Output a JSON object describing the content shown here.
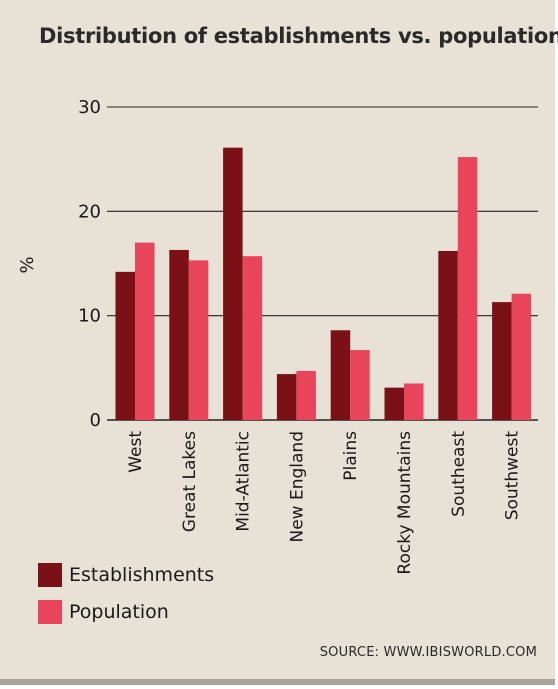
{
  "chart_data": {
    "type": "bar",
    "title": "Distribution of establishments vs. population",
    "ylabel": "%",
    "xlabel": "",
    "ylim": [
      0,
      30
    ],
    "yticks": [
      0,
      10,
      20,
      30
    ],
    "grid": true,
    "legend_position": "bottom-left",
    "categories": [
      "West",
      "Great Lakes",
      "Mid-Atlantic",
      "New England",
      "Plains",
      "Rocky Mountains",
      "Southeast",
      "Southwest"
    ],
    "series": [
      {
        "name": "Establishments",
        "color": "#7a1116",
        "values": [
          14.2,
          16.3,
          26.1,
          4.4,
          8.6,
          3.1,
          16.2,
          11.3
        ]
      },
      {
        "name": "Population",
        "color": "#e8445a",
        "values": [
          17.0,
          15.3,
          15.7,
          4.7,
          6.7,
          3.5,
          25.2,
          12.1
        ]
      }
    ]
  },
  "source": "SOURCE: WWW.IBISWORLD.COM"
}
